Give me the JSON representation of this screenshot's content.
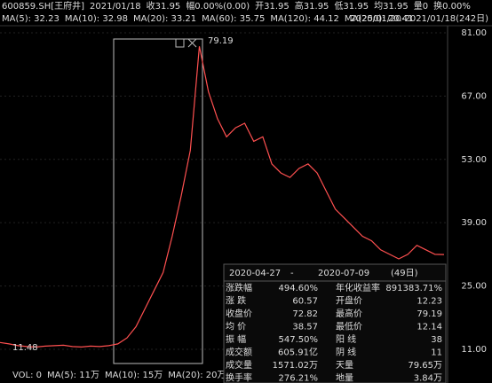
{
  "header": {
    "symbol": "600859.SH[王府井]",
    "date": "2021/01/18",
    "fields": [
      "收31.95",
      "幅0.00%(0.00)",
      "开31.95",
      "高31.95",
      "低31.95",
      "均31.95",
      "量0",
      "换0.00%"
    ]
  },
  "ma_bar": [
    {
      "label": "MA(5): 32.23",
      "color": "#ffffff"
    },
    {
      "label": "MA(10): 32.98",
      "color": "#f0e000"
    },
    {
      "label": "MA(20): 33.21",
      "color": "#e040e0"
    },
    {
      "label": "MA(60): 35.75",
      "color": "#40d040"
    },
    {
      "label": "MA(120): 44.12",
      "color": "#60c0d0"
    },
    {
      "label": "MA(250): 20.41",
      "color": "#ff4040"
    }
  ],
  "range": "2020/01/20-2021/01/18(242日)",
  "chart_data": {
    "type": "line",
    "series": [
      {
        "color": "#ff5050",
        "values": [
          12.5,
          12.2,
          11.8,
          11.6,
          11.5,
          11.7,
          11.8,
          11.9,
          11.6,
          11.5,
          11.7,
          11.6,
          11.8,
          12.2,
          13.5,
          16,
          20,
          24,
          28,
          36,
          45,
          55,
          78,
          68,
          62,
          58,
          60,
          61,
          57,
          58,
          52,
          50,
          49,
          51,
          52,
          50,
          46,
          42,
          40,
          38,
          36,
          35,
          33,
          32,
          31,
          32,
          34,
          33,
          32,
          31.95
        ]
      }
    ],
    "ylim": [
      7.86,
      82.37
    ],
    "yticks": [
      {
        "value": 81,
        "label": "81.00"
      },
      {
        "value": 67,
        "label": "67.00"
      },
      {
        "value": 53,
        "label": "53.00"
      },
      {
        "value": 39,
        "label": "39.00"
      },
      {
        "value": 25,
        "label": "25.00"
      },
      {
        "value": 11,
        "label": "11.00"
      }
    ],
    "annotations": {
      "high": "79.19",
      "low": "11.48"
    }
  },
  "volume_bar": [
    {
      "label": "VOL: 0",
      "color": "#ffffff"
    },
    {
      "label": "MA(5): 11万",
      "color": "#ffffff"
    },
    {
      "label": "MA(10): 15万",
      "color": "#f0e000"
    },
    {
      "label": "MA(20): 20万",
      "color": "#e040e0"
    }
  ],
  "panel": {
    "start": "2020-04-27",
    "sep": "-",
    "end": "2020-07-09",
    "days": "(49日)",
    "rows": [
      [
        {
          "label": "涨跌幅",
          "value": "494.60%",
          "color": "#ff3030"
        },
        {
          "label": "年化收益率",
          "value": "891383.71%",
          "color": "#ff3030"
        }
      ],
      [
        {
          "label": "涨  跌",
          "value": "60.57",
          "color": "#ff3030"
        },
        {
          "label": "开盘价",
          "value": "12.23",
          "color": "#ff3030"
        }
      ],
      [
        {
          "label": "收盘价",
          "value": "72.82",
          "color": "#ff3030"
        },
        {
          "label": "最高价",
          "value": "79.19",
          "color": "#ff3030"
        }
      ],
      [
        {
          "label": "均  价",
          "value": "38.57",
          "color": "#ff3030"
        },
        {
          "label": "最低价",
          "value": "12.14",
          "color": "#ff3030"
        }
      ],
      [
        {
          "label": "振  幅",
          "value": "547.50%",
          "color": "#ff3030"
        },
        {
          "label": "阳  线",
          "value": "38",
          "color": "#ff3030"
        }
      ],
      [
        {
          "label": "成交额",
          "value": "605.91亿",
          "color": "#dddddd"
        },
        {
          "label": "阴  线",
          "value": "11",
          "color": "#30d030"
        }
      ],
      [
        {
          "label": "成交量",
          "value": "1571.02万",
          "color": "#dddddd"
        },
        {
          "label": "天量",
          "value": "79.65万",
          "color": "#dddddd"
        }
      ],
      [
        {
          "label": "换手率",
          "value": "276.21%",
          "color": "#dddddd"
        },
        {
          "label": "地量",
          "value": "3.84万",
          "color": "#dddddd"
        }
      ]
    ]
  }
}
